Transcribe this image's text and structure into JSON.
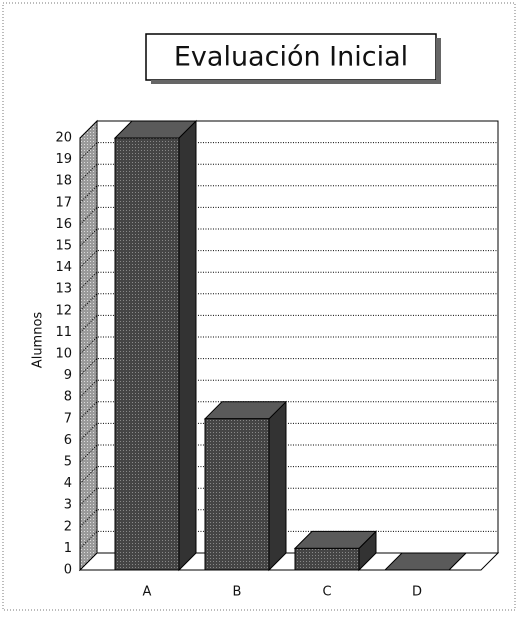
{
  "chart_data": {
    "type": "bar3d",
    "title": "Evaluación Inicial",
    "ylabel": "Alumnos",
    "categories": [
      "A",
      "B",
      "C",
      "D"
    ],
    "values": [
      20,
      7,
      1,
      0
    ],
    "color": "#4a4a4a",
    "ylim": [
      0,
      20
    ],
    "yticks": [
      0,
      1,
      2,
      3,
      4,
      5,
      6,
      7,
      8,
      9,
      10,
      11,
      12,
      13,
      14,
      15,
      16,
      17,
      18,
      19,
      20
    ],
    "grid": true
  }
}
